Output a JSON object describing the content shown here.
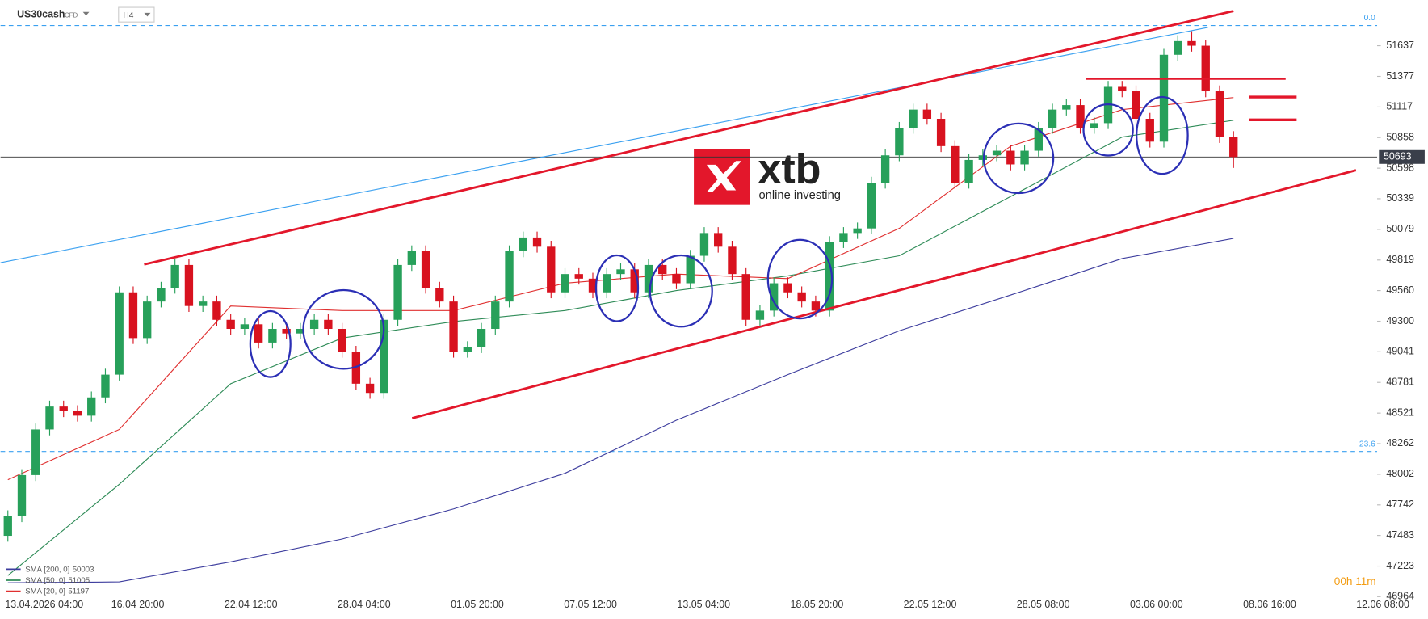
{
  "chart_data": {
    "type": "candlestick",
    "title": "US30cash",
    "subtitle": "CFD",
    "timeframe": "H4",
    "up_color": "#27a05a",
    "down_color": "#d8121f",
    "ohlc": [
      [
        47480,
        47696,
        47430,
        47646
      ],
      [
        47646,
        48045,
        47596,
        47995
      ],
      [
        47995,
        48432,
        47945,
        48382
      ],
      [
        48382,
        48626,
        48332,
        48576
      ],
      [
        48576,
        48626,
        48487,
        48537
      ],
      [
        48537,
        48587,
        48449,
        48499
      ],
      [
        48499,
        48704,
        48449,
        48654
      ],
      [
        48654,
        48897,
        48604,
        48847
      ],
      [
        48847,
        49595,
        48797,
        49545
      ],
      [
        49545,
        49595,
        49107,
        49157
      ],
      [
        49157,
        49517,
        49107,
        49467
      ],
      [
        49467,
        49634,
        49417,
        49584
      ],
      [
        49584,
        49827,
        49534,
        49777
      ],
      [
        49777,
        49827,
        49379,
        49429
      ],
      [
        49429,
        49517,
        49379,
        49467
      ],
      [
        49467,
        49517,
        49262,
        49312
      ],
      [
        49312,
        49362,
        49185,
        49235
      ],
      [
        49235,
        49324,
        49185,
        49274
      ],
      [
        49274,
        49324,
        49069,
        49119
      ],
      [
        49119,
        49285,
        49069,
        49235
      ],
      [
        49235,
        49285,
        49146,
        49196
      ],
      [
        49196,
        49285,
        49146,
        49235
      ],
      [
        49235,
        49362,
        49185,
        49312
      ],
      [
        49312,
        49362,
        49185,
        49235
      ],
      [
        49235,
        49285,
        48991,
        49041
      ],
      [
        49041,
        49091,
        48720,
        48770
      ],
      [
        48770,
        48820,
        48642,
        48692
      ],
      [
        48692,
        49362,
        48642,
        49312
      ],
      [
        49312,
        49827,
        49262,
        49777
      ],
      [
        49777,
        49943,
        49727,
        49893
      ],
      [
        49893,
        49943,
        49534,
        49584
      ],
      [
        49584,
        49634,
        49417,
        49467
      ],
      [
        49467,
        49517,
        48991,
        49041
      ],
      [
        49041,
        49130,
        48991,
        49080
      ],
      [
        49080,
        49285,
        49030,
        49235
      ],
      [
        49235,
        49517,
        49185,
        49467
      ],
      [
        49467,
        49943,
        49417,
        49893
      ],
      [
        49893,
        50060,
        49843,
        50010
      ],
      [
        50010,
        50060,
        49882,
        49932
      ],
      [
        49932,
        49982,
        49495,
        49545
      ],
      [
        49545,
        49750,
        49495,
        49700
      ],
      [
        49700,
        49750,
        49611,
        49661
      ],
      [
        49661,
        49711,
        49495,
        49545
      ],
      [
        49545,
        49750,
        49495,
        49700
      ],
      [
        49700,
        49790,
        49650,
        49740
      ],
      [
        49740,
        49790,
        49495,
        49545
      ],
      [
        49545,
        49827,
        49495,
        49777
      ],
      [
        49777,
        49827,
        49650,
        49700
      ],
      [
        49700,
        49750,
        49572,
        49622
      ],
      [
        49622,
        49905,
        49572,
        49855
      ],
      [
        49855,
        50098,
        49805,
        50048
      ],
      [
        50048,
        50098,
        49882,
        49932
      ],
      [
        49932,
        49982,
        49650,
        49700
      ],
      [
        49700,
        49750,
        49262,
        49312
      ],
      [
        49312,
        49440,
        49262,
        49390
      ],
      [
        49390,
        49672,
        49340,
        49622
      ],
      [
        49622,
        49672,
        49495,
        49545
      ],
      [
        49545,
        49595,
        49417,
        49467
      ],
      [
        49467,
        49517,
        49340,
        49390
      ],
      [
        49390,
        50021,
        49340,
        49971
      ],
      [
        49971,
        50098,
        49921,
        50048
      ],
      [
        50048,
        50137,
        49998,
        50087
      ],
      [
        50087,
        50525,
        50037,
        50475
      ],
      [
        50475,
        50757,
        50425,
        50707
      ],
      [
        50707,
        50990,
        50657,
        50940
      ],
      [
        50940,
        51145,
        50890,
        51095
      ],
      [
        51095,
        51145,
        50967,
        51017
      ],
      [
        51017,
        51067,
        50735,
        50785
      ],
      [
        50785,
        50835,
        50425,
        50475
      ],
      [
        50475,
        50718,
        50425,
        50668
      ],
      [
        50668,
        50757,
        50618,
        50707
      ],
      [
        50707,
        50796,
        50657,
        50746
      ],
      [
        50746,
        50796,
        50580,
        50630
      ],
      [
        50630,
        50796,
        50580,
        50746
      ],
      [
        50746,
        50990,
        50696,
        50940
      ],
      [
        50940,
        51145,
        50890,
        51095
      ],
      [
        51095,
        51183,
        51045,
        51133
      ],
      [
        51133,
        51183,
        50890,
        50940
      ],
      [
        50940,
        51030,
        50890,
        50980
      ],
      [
        50980,
        51338,
        50930,
        51288
      ],
      [
        51288,
        51338,
        51200,
        51250
      ],
      [
        51250,
        51300,
        50967,
        51017
      ],
      [
        51017,
        51067,
        50773,
        50823
      ],
      [
        50823,
        51610,
        50773,
        51560
      ],
      [
        51560,
        51726,
        51510,
        51676
      ],
      [
        51676,
        51760,
        51587,
        51637
      ],
      [
        51637,
        51687,
        51200,
        51250
      ],
      [
        51250,
        51300,
        50812,
        50862
      ],
      [
        50862,
        50912,
        50600,
        50693
      ]
    ],
    "sma": [
      {
        "name": "SMA [200, 0]",
        "color": "#3d3d9e",
        "values": [
          47081,
          47089,
          47259,
          47453,
          47708,
          48010,
          48460,
          48847,
          49219,
          49522,
          49832,
          50003
        ]
      },
      {
        "name": "SMA [50, 0]",
        "color": "#2e8b57",
        "values": [
          47143,
          47917,
          48770,
          49157,
          49297,
          49390,
          49560,
          49684,
          49855,
          50358,
          50862,
          51005
        ]
      },
      {
        "name": "SMA [20, 0]",
        "color": "#e03030",
        "values": [
          47956,
          48382,
          49429,
          49390,
          49390,
          49622,
          49700,
          49661,
          50087,
          50785,
          51095,
          51197
        ]
      }
    ],
    "ylim": [
      46925,
      51947
    ],
    "yticks": [
      51637,
      51377,
      51117,
      50858,
      50598,
      50339,
      50079,
      49819,
      49560,
      49300,
      49041,
      48781,
      48521,
      48262,
      48002,
      47742,
      47483,
      47223,
      46964
    ],
    "x_tick_labels": [
      "13.04.2026 04:00",
      "16.04 20:00",
      "22.04 12:00",
      "28.04 04:00",
      "01.05 20:00",
      "07.05 12:00",
      "13.05 04:00",
      "18.05 20:00",
      "22.05 12:00",
      "28.05 08:00",
      "03.06 00:00",
      "08.06 16:00",
      "12.06 08:00"
    ],
    "last_price": 50693,
    "levels": [
      {
        "label": "0.0",
        "value": 51808
      },
      {
        "label": "23.6",
        "value": 48195
      }
    ],
    "timer": "00h 11m",
    "watermark": {
      "brand": "xtb",
      "tagline": "online investing"
    }
  }
}
